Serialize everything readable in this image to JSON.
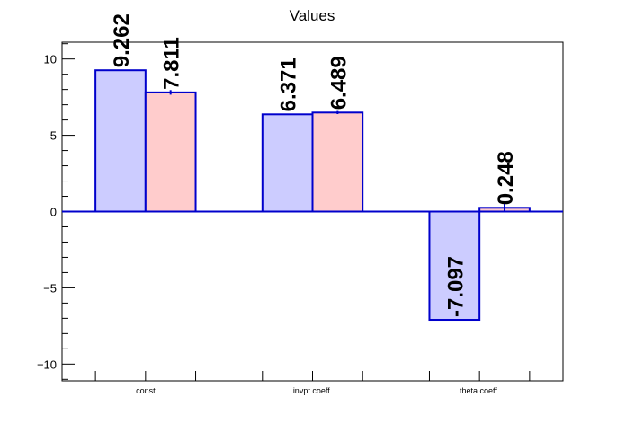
{
  "chart_data": {
    "type": "bar",
    "title": "Values",
    "categories": [
      "const",
      "invpt coeff.",
      "theta coeff."
    ],
    "series": [
      {
        "values": [
          9.262,
          6.371,
          -7.097
        ],
        "errors": [
          0,
          0,
          0
        ],
        "fill": "#ccccff",
        "stroke": "#0000cc"
      },
      {
        "values": [
          7.811,
          6.489,
          0.248
        ],
        "errors": [
          0.15,
          0.1,
          0.25
        ],
        "fill": "#ffcccc",
        "stroke": "#0000cc"
      }
    ],
    "value_labels": [
      [
        "9.262",
        "6.371",
        "-7.097"
      ],
      [
        "7.811",
        "6.489",
        "0.248"
      ]
    ],
    "ylim": [
      -11.1,
      11.1
    ],
    "yticks": [
      -10,
      -5,
      0,
      5,
      10
    ],
    "ytick_labels": [
      "−10",
      "−5",
      "0",
      "5",
      "10"
    ],
    "grid": false,
    "legend": "none"
  }
}
